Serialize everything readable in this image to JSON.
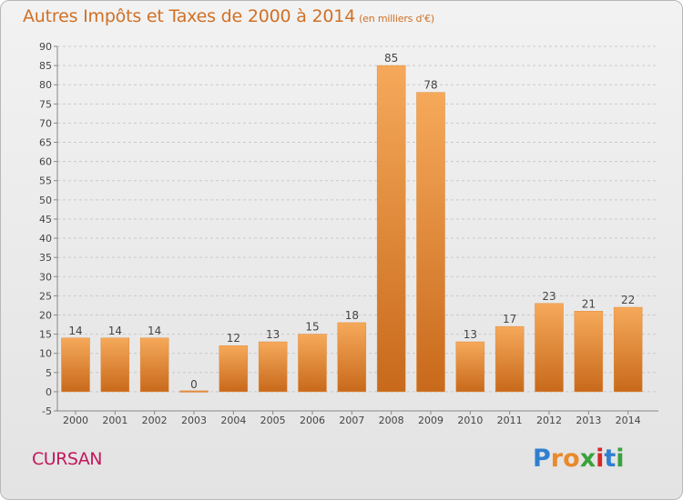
{
  "chart_data": {
    "type": "bar",
    "title": "Autres Impôts et Taxes de 2000 à 2014",
    "subtitle": "(en milliers d'€)",
    "xlabel": "",
    "ylabel": "",
    "categories": [
      "2000",
      "2001",
      "2002",
      "2003",
      "2004",
      "2005",
      "2006",
      "2007",
      "2008",
      "2009",
      "2010",
      "2011",
      "2012",
      "2013",
      "2014"
    ],
    "values": [
      14,
      14,
      14,
      0,
      12,
      13,
      15,
      18,
      85,
      78,
      13,
      17,
      23,
      21,
      22
    ],
    "ylim": [
      -5,
      90
    ],
    "yticks": [
      -5,
      0,
      5,
      10,
      15,
      20,
      25,
      30,
      35,
      40,
      45,
      50,
      55,
      60,
      65,
      70,
      75,
      80,
      85,
      90
    ],
    "grid": "horizontal-dashed",
    "legend": "none",
    "bar_color_top": "#f6a95a",
    "bar_color_bottom": "#c8691b",
    "title_color": "#d07025"
  },
  "footer": {
    "city": "CURSAN",
    "city_color": "#c2185b",
    "logo_letters": [
      "P",
      "r",
      "o",
      "x",
      "i",
      "t",
      "i"
    ],
    "logo_colors": [
      "#2f7fd0",
      "#e98a2c",
      "#e98a2c",
      "#3aa23a",
      "#d8272a",
      "#2f7fd0",
      "#3aa23a"
    ]
  }
}
